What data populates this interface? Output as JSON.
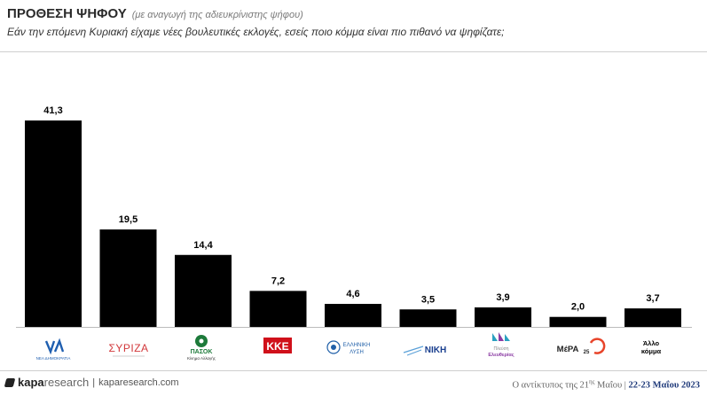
{
  "header": {
    "title": "ΠΡΟΘΕΣΗ ΨΗΦΟΥ",
    "note": "(με αναγωγή της αδιευκρίνιστης ψήφου)",
    "question": "Εάν την επόμενη Κυριακή είχαμε νέες βουλευτικές εκλογές, εσείς ποιο κόμμα είναι πιο πιθανό να ψηφίζατε;"
  },
  "chart_data": {
    "type": "bar",
    "categories": [
      "ΝΕΑ ΔΗΜΟΚΡΑΤΙΑ",
      "ΣΥΡΙΖΑ",
      "ΠΑΣΟΚ",
      "ΚΚΕ",
      "ΕΛΛΗΝΙΚΗ ΛΥΣΗ",
      "ΝΙΚΗ",
      "Πλεύση Ελευθερίας",
      "ΜέΡΑ25",
      "Άλλο κόμμα"
    ],
    "values": [
      41.3,
      19.5,
      14.4,
      7.2,
      4.6,
      3.5,
      3.9,
      2.0,
      3.7
    ],
    "value_labels": [
      "41,3",
      "19,5",
      "14,4",
      "7,2",
      "4,6",
      "3,5",
      "3,9",
      "2,0",
      "3,7"
    ],
    "title": "",
    "xlabel": "",
    "ylabel": "",
    "ylim": [
      0,
      45
    ],
    "grid": false,
    "bar_color": "#000000"
  },
  "logos": {
    "nd": {
      "mark": "ΝΔ",
      "caption": "ΝΕΑ ΔΗΜΟΚΡΑΤΙΑ",
      "color": "#1f5fb0"
    },
    "syriza": {
      "mark": "ΣΥΡΙΖΑ",
      "color": "#d2383b"
    },
    "pasok": {
      "mark": "ΠΑΣΟΚ",
      "caption": "Κίνημα Αλλαγής",
      "color": "#1d7a3a"
    },
    "kke": {
      "mark": "ΚΚΕ",
      "color": "#d0101a"
    },
    "el": {
      "line1": "ΕΛΛΗΝΙΚΗ",
      "line2": "ΛΥΣΗ",
      "color": "#1f5fa8"
    },
    "niki": {
      "mark": "ΝΙΚΗ",
      "color": "#1a3f8f"
    },
    "plefsi": {
      "line1": "Πλεύση",
      "line2": "Ελευθερίας",
      "color": "#8a3aa3"
    },
    "mera": {
      "mark": "ΜέΡΑ",
      "num": "25",
      "color": "#e8442a"
    },
    "allo": {
      "line1": "Άλλο",
      "line2": "κόμμα"
    }
  },
  "footer": {
    "brand_main": "kapa",
    "brand_light": "research",
    "separator": "|",
    "url": "kaparesearch.com",
    "source_text": "Ο αντίκτυπος της 21",
    "source_sup": "ης",
    "source_tail": " Μαΐου | ",
    "dates": "22-23 Μαΐου 2023"
  }
}
